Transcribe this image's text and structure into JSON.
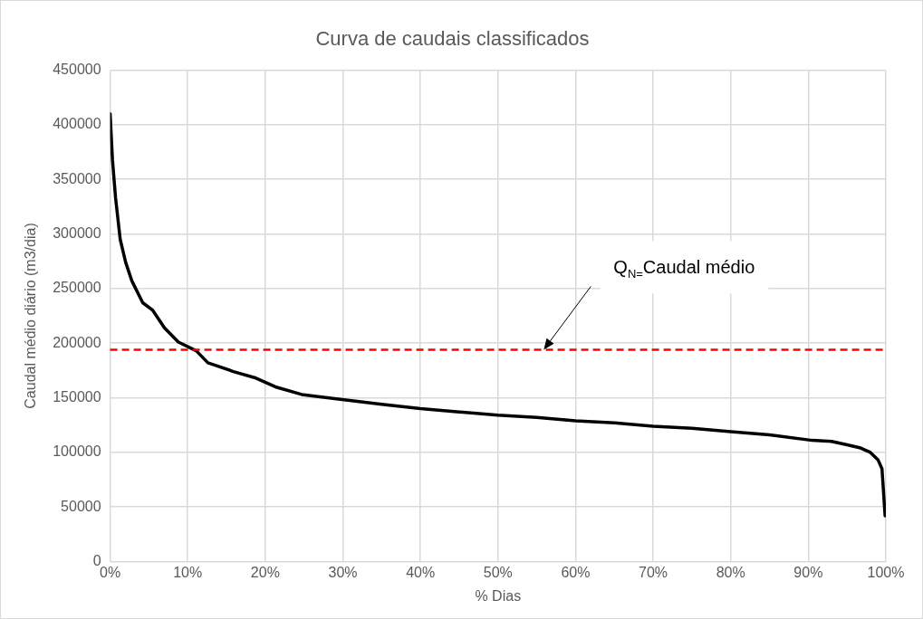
{
  "chart_data": {
    "type": "line",
    "title": "Curva de caudais classificados",
    "xlabel": "% Dias",
    "ylabel": "Caudal médio diário (m3/dia)",
    "x": [
      0,
      0.3,
      0.7,
      1.3,
      2.0,
      2.8,
      4.2,
      5.5,
      7.0,
      8.8,
      11.1,
      12.6,
      15.9,
      18.8,
      21.3,
      24.7,
      29.2,
      35,
      40,
      45,
      50,
      55,
      60,
      65,
      70,
      75,
      80,
      85,
      90.5,
      93,
      95,
      96.75,
      98,
      99.0,
      99.5,
      99.9
    ],
    "series": [
      {
        "color": "#000000",
        "values": [
          410000,
          368000,
          333000,
          295000,
          274000,
          257000,
          237000,
          230000,
          214000,
          201000,
          193000,
          182000,
          174000,
          168000,
          160000,
          153000,
          149000,
          144000,
          140000,
          137000,
          134000,
          132000,
          129000,
          127000,
          124000,
          122000,
          119000,
          116000,
          111000,
          110000,
          107000,
          104000,
          100000,
          93000,
          85000,
          42000
        ]
      }
    ],
    "xlim": [
      0,
      100
    ],
    "xticks": [
      {
        "value": 0,
        "label": "0%"
      },
      {
        "value": 10,
        "label": "10%"
      },
      {
        "value": 20,
        "label": "20%"
      },
      {
        "value": 30,
        "label": "30%"
      },
      {
        "value": 40,
        "label": "40%"
      },
      {
        "value": 50,
        "label": "50%"
      },
      {
        "value": 60,
        "label": "60%"
      },
      {
        "value": 70,
        "label": "70%"
      },
      {
        "value": 80,
        "label": "80%"
      },
      {
        "value": 90,
        "label": "90%"
      },
      {
        "value": 100,
        "label": "100%"
      }
    ],
    "ylim": [
      0,
      450000
    ],
    "yticks": [
      0,
      50000,
      100000,
      150000,
      200000,
      250000,
      300000,
      350000,
      400000,
      450000
    ],
    "ref_lines": [
      {
        "axis": "y",
        "value": 194000,
        "color": "#ff0000",
        "line_style": "dashed"
      }
    ],
    "annotations": [
      "Q$_{N=}$Caudal médio"
    ],
    "grid": true,
    "legend": false,
    "marker": "none",
    "line_style": "solid"
  }
}
